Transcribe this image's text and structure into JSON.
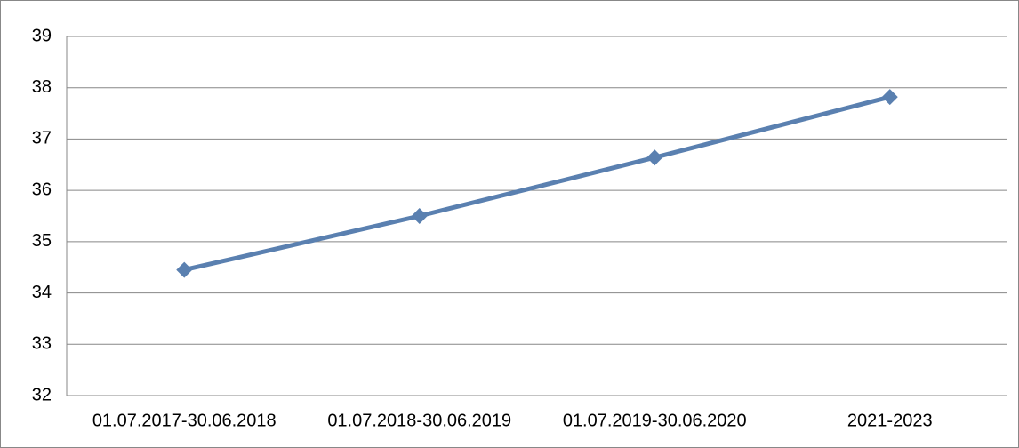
{
  "chart_data": {
    "type": "line",
    "categories": [
      "01.07.2017-30.06.2018",
      "01.07.2018-30.06.2019",
      "01.07.2019-30.06.2020",
      "2021-2023"
    ],
    "series": [
      {
        "name": null,
        "color": "#5a80b0",
        "values": [
          34.45,
          35.5,
          36.64,
          37.82
        ]
      }
    ],
    "ylim": [
      32,
      39
    ],
    "yticks": [
      32,
      33,
      34,
      35,
      36,
      37,
      38,
      39
    ],
    "grid": true
  }
}
